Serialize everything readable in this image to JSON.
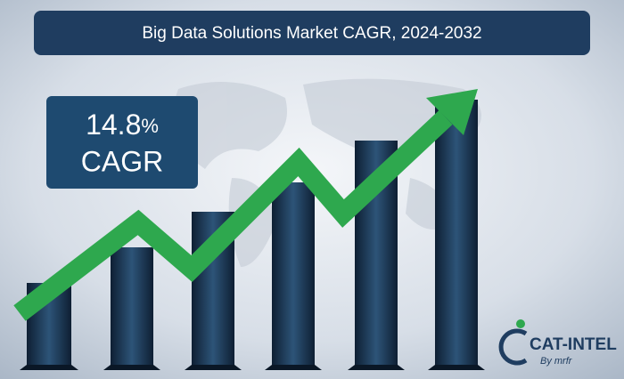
{
  "header": {
    "title": "Big Data Solutions Market CAGR, 2024-2032"
  },
  "callout": {
    "number": "14.8",
    "unit": "%",
    "label": "CAGR"
  },
  "logo": {
    "name": "CAT-INTEL",
    "byline": "By mrfr"
  }
}
